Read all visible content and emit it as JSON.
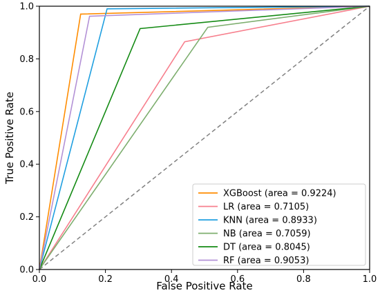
{
  "chart_data": {
    "type": "line",
    "title": "",
    "xlabel": "False Positive Rate",
    "ylabel": "True Positive Rate",
    "xlim": [
      0,
      1
    ],
    "ylim": [
      0,
      1
    ],
    "xticks": [
      "0.0",
      "0.2",
      "0.4",
      "0.6",
      "0.8",
      "1.0"
    ],
    "yticks": [
      "0.0",
      "0.2",
      "0.4",
      "0.6",
      "0.8",
      "1.0"
    ],
    "grid": false,
    "legend_position": "lower-right",
    "series": [
      {
        "name": "XGBoost (area = 0.9224)",
        "color": "#ff8c00",
        "x": [
          0,
          0.125,
          1
        ],
        "y": [
          0,
          0.97,
          1
        ]
      },
      {
        "name": "LR (area = 0.7105)",
        "color": "#f77f8d",
        "x": [
          0,
          0.44,
          1
        ],
        "y": [
          0,
          0.865,
          1
        ]
      },
      {
        "name": "KNN (area = 0.8933)",
        "color": "#1f9fe0",
        "x": [
          0,
          0.205,
          1
        ],
        "y": [
          0,
          0.99,
          1
        ]
      },
      {
        "name": "NB (area = 0.7059)",
        "color": "#7dae6e",
        "x": [
          0,
          0.51,
          1
        ],
        "y": [
          0,
          0.92,
          1
        ]
      },
      {
        "name": "DT (area = 0.8045)",
        "color": "#138a13",
        "x": [
          0,
          0.305,
          1
        ],
        "y": [
          0,
          0.915,
          1
        ]
      },
      {
        "name": "RF (area = 0.9053)",
        "color": "#b391d6",
        "x": [
          0,
          0.152,
          1
        ],
        "y": [
          0,
          0.962,
          1
        ]
      }
    ],
    "reference_line": {
      "x": [
        0,
        1
      ],
      "y": [
        0,
        1
      ],
      "color": "#808080",
      "style": "dashed"
    }
  }
}
